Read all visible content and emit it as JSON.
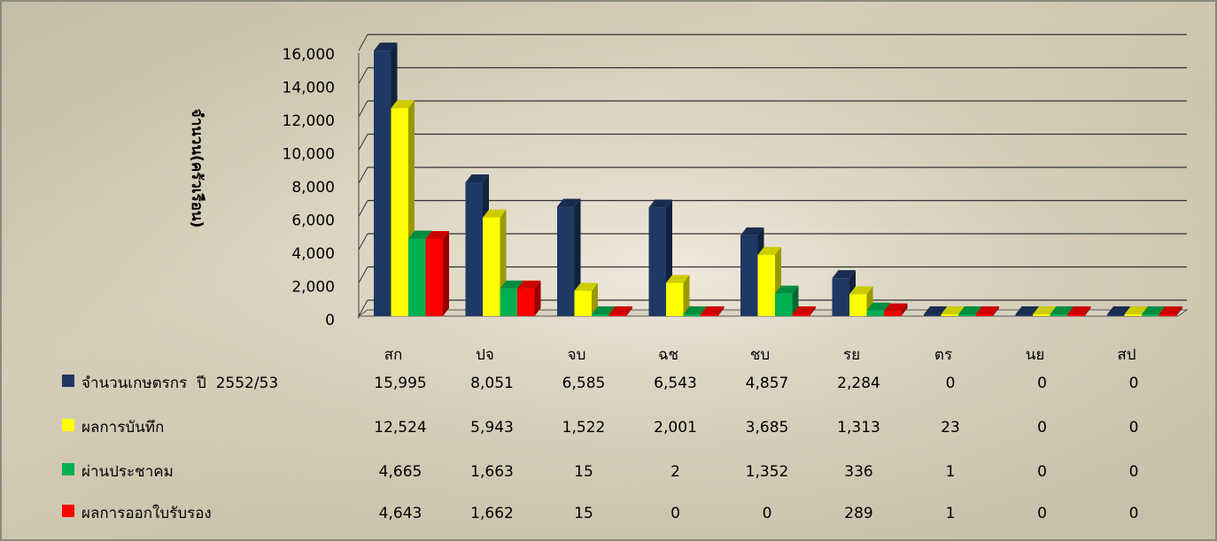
{
  "chart_data": {
    "type": "bar",
    "y_label": "จำนวน(ครัวเรือน)",
    "categories": [
      "สก",
      "ปจ",
      "จบ",
      "ฉช",
      "ชบ",
      "รย",
      "ตร",
      "นย",
      "สป"
    ],
    "series": [
      {
        "name": "จำนวนเกษตรกร  ปี  2552/53",
        "color": "#1f3864",
        "values": [
          15995,
          8051,
          6585,
          6543,
          4857,
          2284,
          0,
          0,
          0
        ],
        "value_labels": [
          "15,995",
          "8,051",
          "6,585",
          "6,543",
          "4,857",
          "2,284",
          "0",
          "0",
          "0"
        ]
      },
      {
        "name": "ผลการบันทึก",
        "color": "#ffff00",
        "values": [
          12524,
          5943,
          1522,
          2001,
          3685,
          1313,
          23,
          0,
          0
        ],
        "value_labels": [
          "12,524",
          "5,943",
          "1,522",
          "2,001",
          "3,685",
          "1,313",
          "23",
          "0",
          "0"
        ]
      },
      {
        "name": "ผ่านประชาคม",
        "color": "#00b050",
        "values": [
          4665,
          1663,
          15,
          2,
          1352,
          336,
          1,
          0,
          0
        ],
        "value_labels": [
          "4,665",
          "1,663",
          "15",
          "2",
          "1,352",
          "336",
          "1",
          "0",
          "0"
        ]
      },
      {
        "name": "ผลการออกใบรับรอง",
        "color": "#ff0000",
        "values": [
          4643,
          1662,
          15,
          0,
          0,
          289,
          1,
          0,
          0
        ],
        "value_labels": [
          "4,643",
          "1,662",
          "15",
          "0",
          "0",
          "289",
          "1",
          "0",
          "0"
        ]
      }
    ],
    "ylim": [
      0,
      16000
    ],
    "yticks": [
      0,
      {
        "value": 2000,
        "label": "2,000"
      },
      {
        "value": 4000,
        "label": "4,000"
      },
      {
        "value": 6000,
        "label": "6,000"
      },
      {
        "value": 8000,
        "label": "8,000"
      },
      {
        "value": 10000,
        "label": "10,000"
      },
      {
        "value": 12000,
        "label": "12,000"
      },
      {
        "value": 14000,
        "label": "14,000"
      },
      {
        "value": 16000,
        "label": "16,000"
      }
    ],
    "grid": true
  }
}
